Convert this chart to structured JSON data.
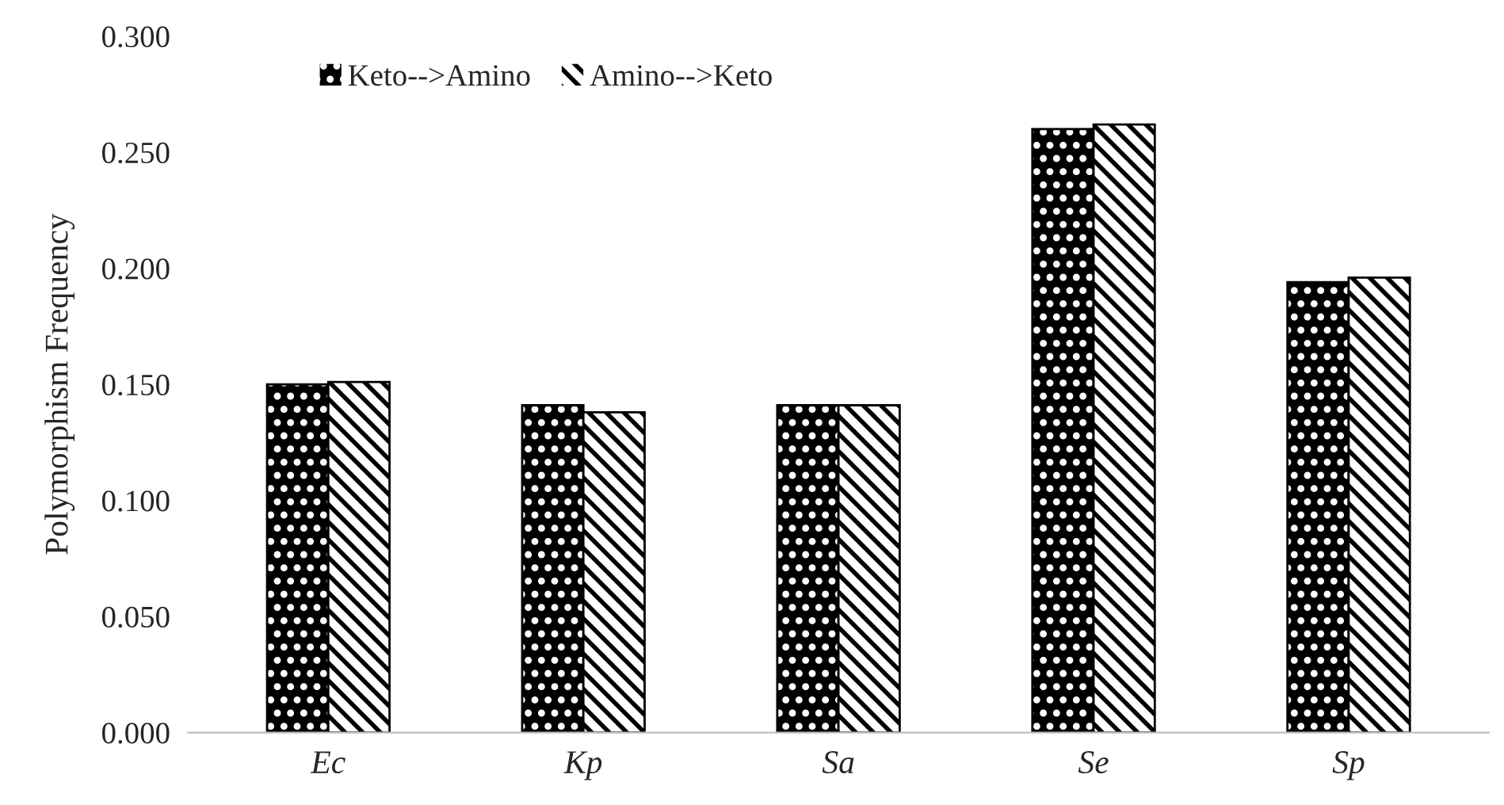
{
  "chart_data": {
    "type": "bar",
    "ylabel": "Polymorphism Frequency",
    "categories": [
      "Ec",
      "Kp",
      "Sa",
      "Se",
      "Sp"
    ],
    "series": [
      {
        "name": "Keto-->Amino",
        "color": "#000000",
        "values": [
          0.15,
          0.141,
          0.141,
          0.26,
          0.194
        ]
      },
      {
        "name": "Amino-->Keto",
        "color": "#ffffff",
        "values": [
          0.151,
          0.138,
          0.141,
          0.262,
          0.196
        ]
      }
    ],
    "ylim": [
      0,
      0.3
    ],
    "yticks": [
      {
        "value": 0,
        "label": "0.000"
      },
      {
        "value": 0.05,
        "label": "0.050"
      },
      {
        "value": 0.1,
        "label": "0.100"
      },
      {
        "value": 0.15,
        "label": "0.150"
      },
      {
        "value": 0.2,
        "label": "0.200"
      },
      {
        "value": 0.25,
        "label": "0.250"
      },
      {
        "value": 0.3,
        "label": "0.300"
      }
    ],
    "grid": false,
    "legend": "top left"
  }
}
